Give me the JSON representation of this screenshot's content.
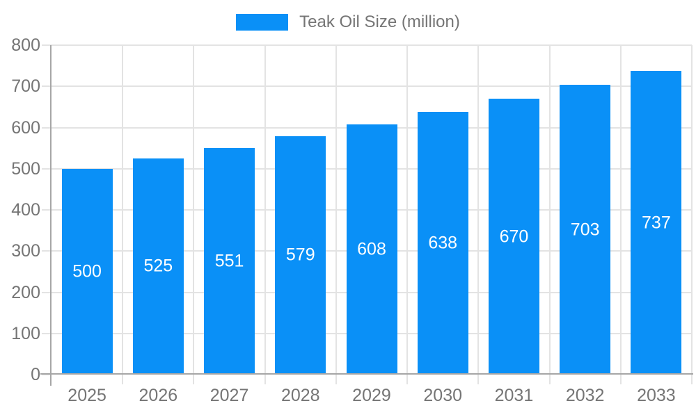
{
  "chart_data": {
    "type": "bar",
    "title": "Teak Oil Size (million)",
    "categories": [
      "2025",
      "2026",
      "2027",
      "2028",
      "2029",
      "2030",
      "2031",
      "2032",
      "2033"
    ],
    "values": [
      500,
      525,
      551,
      579,
      608,
      638,
      670,
      703,
      737
    ],
    "xlabel": "",
    "ylabel": "",
    "ylim": [
      0,
      800
    ],
    "ytick_step": 100,
    "ytick_labels": [
      "0",
      "100",
      "200",
      "300",
      "400",
      "500",
      "600",
      "700",
      "800"
    ],
    "grid": true,
    "bar_value_labels_inside": true,
    "legend": {
      "label": "Teak Oil Size (million)",
      "position": "top"
    },
    "colors": {
      "bar": "#0A90F7",
      "bar_label": "#FFFFFF",
      "axis_line": "#A6A6A6",
      "gridline": "#E3E3E3",
      "tick_label": "#757575",
      "legend_text": "#757575"
    }
  }
}
